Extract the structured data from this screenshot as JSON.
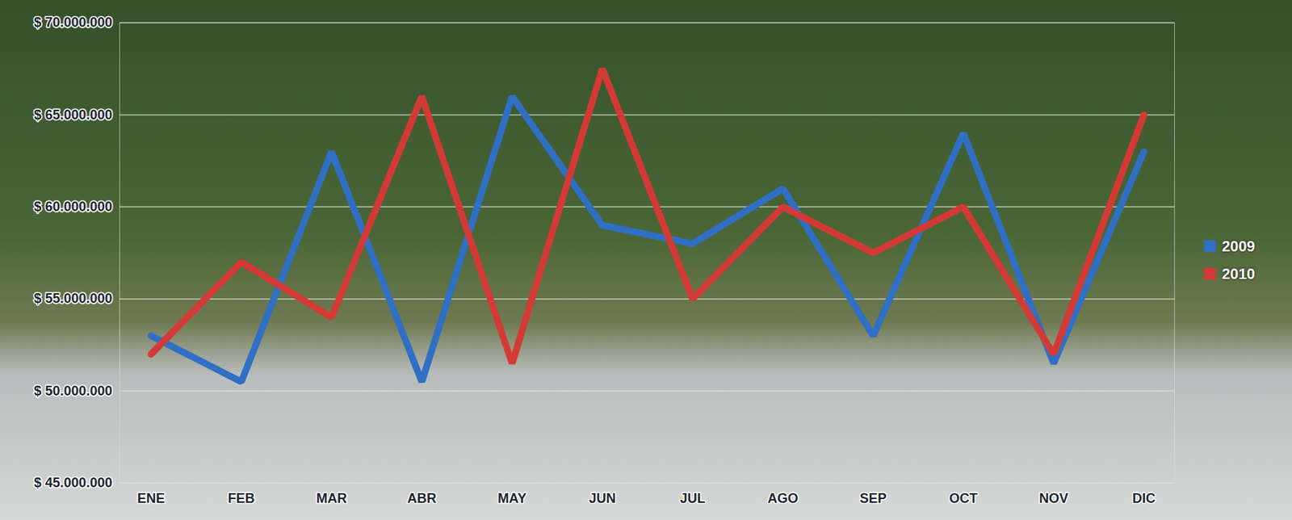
{
  "chart_data": {
    "type": "line",
    "categories": [
      "ENE",
      "FEB",
      "MAR",
      "ABR",
      "MAY",
      "JUN",
      "JUL",
      "AGO",
      "SEP",
      "OCT",
      "NOV",
      "DIC"
    ],
    "series": [
      {
        "name": "2009",
        "color": "#2f6fc4",
        "values": [
          53000000,
          50500000,
          63000000,
          50500000,
          66000000,
          59000000,
          58000000,
          61000000,
          53000000,
          64000000,
          51500000,
          63000000
        ]
      },
      {
        "name": "2010",
        "color": "#d33a35",
        "values": [
          52000000,
          57000000,
          54000000,
          66000000,
          51500000,
          67500000,
          55000000,
          60000000,
          57500000,
          60000000,
          52000000,
          65000000
        ]
      }
    ],
    "ylim": [
      45000000,
      70000000
    ],
    "yticks": [
      {
        "value": 45000000,
        "label": "$ 45.000.000"
      },
      {
        "value": 50000000,
        "label": "$ 50.000.000"
      },
      {
        "value": 55000000,
        "label": "$ 55.000.000"
      },
      {
        "value": 60000000,
        "label": "$ 60.000.000"
      },
      {
        "value": 65000000,
        "label": "$ 65.000.000"
      },
      {
        "value": 70000000,
        "label": "$ 70.000.000"
      }
    ],
    "grid": true,
    "legend": "right"
  }
}
